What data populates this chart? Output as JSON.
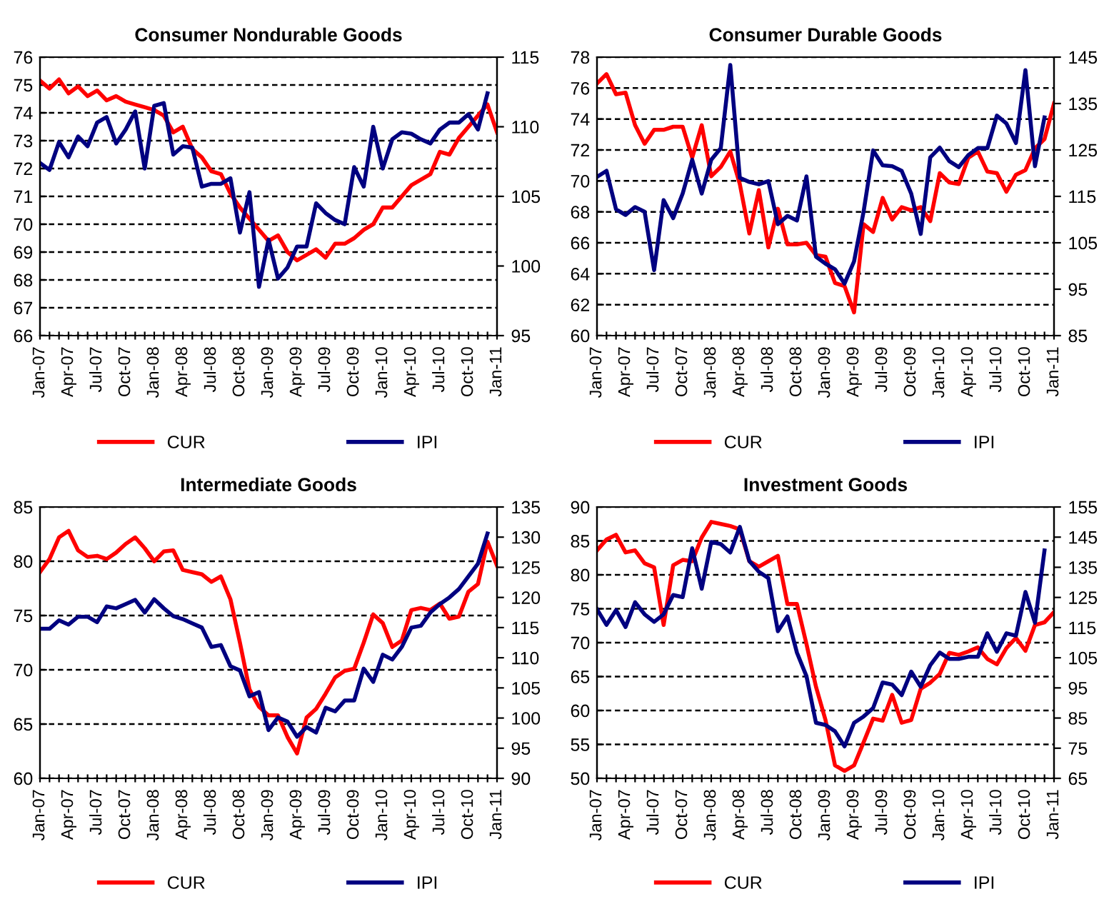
{
  "chart_data": [
    {
      "type": "line",
      "title": "Consumer Nondurable Goods",
      "categories": [
        "Jan-07",
        null,
        null,
        "Apr-07",
        null,
        null,
        "Jul-07",
        null,
        null,
        "Oct-07",
        null,
        null,
        "Jan-08",
        null,
        null,
        "Apr-08",
        null,
        null,
        "Jul-08",
        null,
        null,
        "Oct-08",
        null,
        null,
        "Jan-09",
        null,
        null,
        "Apr-09",
        null,
        null,
        "Jul-09",
        null,
        null,
        "Oct-09",
        null,
        null,
        "Jan-10",
        null,
        null,
        "Apr-10",
        null,
        null,
        "Jul-10",
        null,
        null,
        "Oct-10",
        null,
        null,
        "Jan-11"
      ],
      "ylim": [
        66,
        76
      ],
      "yticks": [
        66,
        67,
        68,
        69,
        70,
        71,
        72,
        73,
        74,
        75,
        76
      ],
      "y2lim": [
        95,
        115
      ],
      "y2ticks": [
        95,
        100,
        105,
        110,
        115
      ],
      "grid": "y",
      "legend": "bottom",
      "line_style": "solid",
      "series": [
        {
          "name": "CUR",
          "color": "#ff0000",
          "values": [
            75.16,
            74.87,
            75.2,
            74.7,
            74.95,
            74.6,
            74.8,
            74.45,
            74.6,
            74.4,
            74.3,
            74.2,
            74.1,
            73.9,
            73.3,
            73.5,
            72.7,
            72.4,
            71.9,
            71.8,
            71.1,
            70.6,
            70.2,
            69.8,
            69.4,
            69.6,
            69.0,
            68.7,
            68.9,
            69.1,
            68.8,
            69.3,
            69.3,
            69.5,
            69.8,
            70.0,
            70.6,
            70.6,
            71.0,
            71.4,
            71.6,
            71.8,
            72.6,
            72.5,
            73.1,
            73.5,
            73.9,
            74.3,
            73.3
          ]
        },
        {
          "name": "IPI",
          "color": "#000080",
          "axis": "y2",
          "values": [
            107.4,
            106.9,
            108.9,
            107.8,
            109.3,
            108.6,
            110.3,
            110.7,
            108.8,
            109.8,
            111.1,
            107.0,
            111.5,
            111.7,
            108.0,
            108.6,
            108.5,
            105.7,
            105.9,
            105.9,
            106.3,
            102.4,
            105.3,
            98.5,
            101.9,
            99.1,
            99.9,
            101.4,
            101.4,
            104.5,
            103.8,
            103.3,
            103.0,
            107.1,
            105.7,
            110.0,
            107.0,
            109.1,
            109.6,
            109.5,
            109.1,
            108.8,
            109.8,
            110.3,
            110.3,
            110.9,
            109.8,
            112.4,
            null
          ]
        }
      ]
    },
    {
      "type": "line",
      "title": "Consumer Durable Goods",
      "categories": [
        "Jan-07",
        null,
        null,
        "Apr-07",
        null,
        null,
        "Jul-07",
        null,
        null,
        "Oct-07",
        null,
        null,
        "Jan-08",
        null,
        null,
        "Apr-08",
        null,
        null,
        "Jul-08",
        null,
        null,
        "Oct-08",
        null,
        null,
        "Jan-09",
        null,
        null,
        "Apr-09",
        null,
        null,
        "Jul-09",
        null,
        null,
        "Oct-09",
        null,
        null,
        "Jan-10",
        null,
        null,
        "Apr-10",
        null,
        null,
        "Jul-10",
        null,
        null,
        "Oct-10",
        null,
        null,
        "Jan-11"
      ],
      "ylim": [
        60,
        78
      ],
      "yticks": [
        60,
        62,
        64,
        66,
        68,
        70,
        72,
        74,
        76,
        78
      ],
      "y2lim": [
        85,
        145
      ],
      "y2ticks": [
        85,
        95,
        105,
        115,
        125,
        135,
        145
      ],
      "grid": "y",
      "legend": "bottom",
      "line_style": "solid",
      "series": [
        {
          "name": "CUR",
          "color": "#ff0000",
          "values": [
            76.3,
            76.9,
            75.6,
            75.7,
            73.6,
            72.4,
            73.3,
            73.3,
            73.5,
            73.5,
            71.5,
            73.6,
            70.3,
            70.9,
            71.9,
            69.8,
            66.6,
            69.4,
            65.7,
            68.2,
            65.9,
            65.9,
            66.0,
            65.2,
            65.1,
            63.4,
            63.2,
            61.5,
            67.2,
            66.7,
            68.9,
            67.5,
            68.3,
            68.1,
            68.3,
            67.4,
            70.5,
            69.9,
            69.8,
            71.5,
            71.9,
            70.6,
            70.5,
            69.3,
            70.4,
            70.7,
            72.1,
            72.7,
            75.0
          ]
        },
        {
          "name": "IPI",
          "color": "#000080",
          "axis": "y2",
          "values": [
            119.2,
            120.5,
            112.2,
            111.0,
            112.7,
            111.7,
            99.1,
            114.2,
            110.3,
            115.6,
            122.9,
            115.6,
            122.9,
            125.4,
            143.3,
            119.0,
            118.1,
            117.6,
            118.3,
            109.0,
            110.8,
            109.8,
            119.3,
            102.0,
            100.5,
            99.3,
            96.2,
            101.0,
            111.7,
            124.9,
            121.7,
            121.5,
            120.5,
            115.6,
            106.9,
            123.4,
            125.5,
            122.6,
            121.3,
            123.9,
            125.4,
            125.4,
            132.4,
            130.7,
            126.5,
            142.2,
            121.5,
            132.0,
            null
          ]
        }
      ]
    },
    {
      "type": "line",
      "title": "Intermediate Goods",
      "categories": [
        "Jan-07",
        null,
        null,
        "Apr-07",
        null,
        null,
        "Jul-07",
        null,
        null,
        "Oct-07",
        null,
        null,
        "Jan-08",
        null,
        null,
        "Apr-08",
        null,
        null,
        "Jul-08",
        null,
        null,
        "Oct-08",
        null,
        null,
        "Jan-09",
        null,
        null,
        "Apr-09",
        null,
        null,
        "Jul-09",
        null,
        null,
        "Oct-09",
        null,
        null,
        "Jan-10",
        null,
        null,
        "Apr-10",
        null,
        null,
        "Jul-10",
        null,
        null,
        "Oct-10",
        null,
        null,
        "Jan-11"
      ],
      "ylim": [
        60,
        85
      ],
      "yticks": [
        60,
        65,
        70,
        75,
        80,
        85
      ],
      "y2lim": [
        90,
        135
      ],
      "y2ticks": [
        90,
        95,
        100,
        105,
        110,
        115,
        120,
        125,
        130,
        135
      ],
      "grid": "y",
      "legend": "bottom",
      "line_style": "solid",
      "series": [
        {
          "name": "CUR",
          "color": "#ff0000",
          "values": [
            79.0,
            80.2,
            82.2,
            82.8,
            81.0,
            80.4,
            80.5,
            80.2,
            80.8,
            81.6,
            82.2,
            81.2,
            80.0,
            80.9,
            81.0,
            79.2,
            79.0,
            78.8,
            78.1,
            78.6,
            76.5,
            72.5,
            68.2,
            66.6,
            65.8,
            65.8,
            63.8,
            62.3,
            65.6,
            66.4,
            67.8,
            69.3,
            69.9,
            70.1,
            72.5,
            75.1,
            74.3,
            72.1,
            72.7,
            75.5,
            75.7,
            75.5,
            76.1,
            74.7,
            74.9,
            77.2,
            77.9,
            81.8,
            79.6
          ]
        },
        {
          "name": "IPI",
          "color": "#000080",
          "axis": "y2",
          "values": [
            114.8,
            114.8,
            116.2,
            115.5,
            116.8,
            116.8,
            115.9,
            118.5,
            118.2,
            118.9,
            119.6,
            117.5,
            119.7,
            118.2,
            116.9,
            116.4,
            115.7,
            115.0,
            111.8,
            112.1,
            108.6,
            107.9,
            103.6,
            104.3,
            98.0,
            100.1,
            99.4,
            96.9,
            98.5,
            97.6,
            101.7,
            101.1,
            102.9,
            102.9,
            108.2,
            106.0,
            110.5,
            109.7,
            111.8,
            115.0,
            115.3,
            117.5,
            118.9,
            120.0,
            121.4,
            123.5,
            125.6,
            130.6,
            null
          ]
        }
      ]
    },
    {
      "type": "line",
      "title": "Investment Goods",
      "categories": [
        "Jan-07",
        null,
        null,
        "Apr-07",
        null,
        null,
        "Jul-07",
        null,
        null,
        "Oct-07",
        null,
        null,
        "Jan-08",
        null,
        null,
        "Apr-08",
        null,
        null,
        "Jul-08",
        null,
        null,
        "Oct-08",
        null,
        null,
        "Jan-09",
        null,
        null,
        "Apr-09",
        null,
        null,
        "Jul-09",
        null,
        null,
        "Oct-09",
        null,
        null,
        "Jan-10",
        null,
        null,
        "Apr-10",
        null,
        null,
        "Jul-10",
        null,
        null,
        "Oct-10",
        null,
        null,
        "Jan-11"
      ],
      "ylim": [
        50,
        90
      ],
      "yticks": [
        50,
        55,
        60,
        65,
        70,
        75,
        80,
        85,
        90
      ],
      "y2lim": [
        65,
        155
      ],
      "y2ticks": [
        65,
        75,
        85,
        95,
        105,
        115,
        125,
        135,
        145,
        155
      ],
      "grid": "y",
      "legend": "bottom",
      "line_style": "solid",
      "series": [
        {
          "name": "CUR",
          "color": "#ff0000",
          "values": [
            83.6,
            85.2,
            85.9,
            83.3,
            83.6,
            81.7,
            81.1,
            72.6,
            81.4,
            82.2,
            82.0,
            85.5,
            87.8,
            87.5,
            87.2,
            86.7,
            82.0,
            81.2,
            82.0,
            82.8,
            75.7,
            75.7,
            69.8,
            63.5,
            58.6,
            51.9,
            51.1,
            51.9,
            55.3,
            58.8,
            58.5,
            62.3,
            58.2,
            58.6,
            63.2,
            64.1,
            65.4,
            68.5,
            68.2,
            68.7,
            69.3,
            67.6,
            66.8,
            69.2,
            70.7,
            68.8,
            72.6,
            73.0,
            74.5
          ]
        },
        {
          "name": "IPI",
          "color": "#000080",
          "axis": "y2",
          "values": [
            121.1,
            115.9,
            120.8,
            115.2,
            123.4,
            119.4,
            116.9,
            119.4,
            125.8,
            125.1,
            141.3,
            127.9,
            143.4,
            142.7,
            139.9,
            148.4,
            137.1,
            133.5,
            131.4,
            113.8,
            118.7,
            106.7,
            98.9,
            83.4,
            82.7,
            80.6,
            75.6,
            83.4,
            85.5,
            88.3,
            96.8,
            96.1,
            92.6,
            100.4,
            95.4,
            102.5,
            106.7,
            104.6,
            104.6,
            105.3,
            105.3,
            113.1,
            107.0,
            113.1,
            112.3,
            126.8,
            116.6,
            140.6,
            null
          ]
        }
      ]
    }
  ]
}
